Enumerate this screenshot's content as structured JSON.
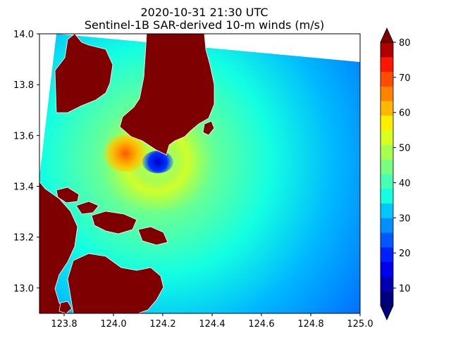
{
  "chart_data": {
    "type": "heatmap",
    "title": "2020-10-31 21:30 UTC",
    "subtitle": "Sentinel-1B SAR-derived 10-m winds (m/s)",
    "xlabel": "",
    "ylabel": "",
    "xlim": [
      123.7,
      125.0
    ],
    "ylim": [
      12.9,
      14.0
    ],
    "xticks": [
      "123.8",
      "124.0",
      "124.2",
      "124.4",
      "124.6",
      "124.8",
      "125.0"
    ],
    "xtick_values": [
      123.8,
      124.0,
      124.2,
      124.4,
      124.6,
      124.8,
      125.0
    ],
    "yticks": [
      "13.0",
      "13.2",
      "13.4",
      "13.6",
      "13.8",
      "14.0"
    ],
    "ytick_values": [
      13.0,
      13.2,
      13.4,
      13.6,
      13.8,
      14.0
    ],
    "colorbar": {
      "ticks": [
        "10",
        "20",
        "30",
        "40",
        "50",
        "60",
        "70",
        "80"
      ],
      "tick_values": [
        10,
        20,
        30,
        40,
        50,
        60,
        70,
        80
      ],
      "range": [
        5,
        80
      ],
      "extend": "both",
      "colors": [
        "#00007f",
        "#0000b2",
        "#0000f0",
        "#0020ff",
        "#0058ff",
        "#0090ff",
        "#00c8ff",
        "#14ffe2",
        "#45ffb2",
        "#76ff81",
        "#a7ff50",
        "#d8ff1f",
        "#ffee00",
        "#ffb800",
        "#ff8200",
        "#ff4c00",
        "#ff1600",
        "#b20000"
      ],
      "under_color": "#00007f",
      "over_color": "#7f0000"
    },
    "land_color": "#7f0000",
    "features": {
      "eye_center": [
        124.18,
        13.51
      ],
      "eye_wind": 12,
      "max_wind_region": [
        124.04,
        13.52
      ],
      "max_wind": 62
    }
  }
}
